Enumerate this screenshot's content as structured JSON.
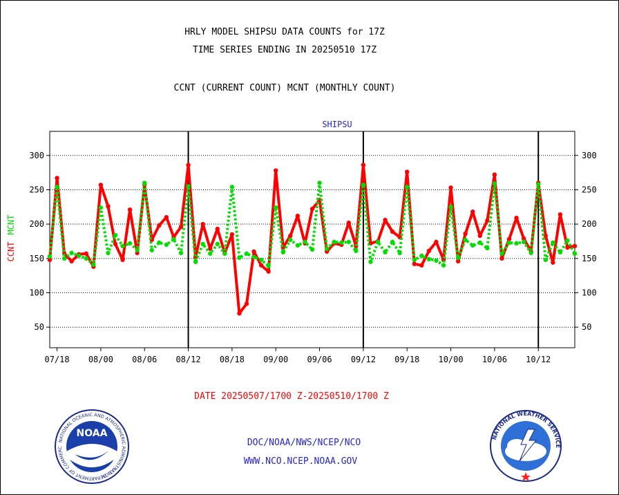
{
  "header": {
    "title_line1": "HRLY MODEL SHIPSU DATA COUNTS for 17Z",
    "title_line2": "TIME SERIES ENDING IN 20250510 17Z",
    "subtitle": "CCNT (CURRENT COUNT) MCNT (MONTHLY COUNT)"
  },
  "footer": {
    "date_range": "DATE 20250507/1700 Z-20250510/1700 Z",
    "link1": "DOC/NOAA/NWS/NCEP/NCO",
    "link2": "WWW.NCO.NCEP.NOAA.GOV",
    "noaa_logo_text": "NOAA",
    "noaa_ring_text": "NATIONAL OCEANIC AND ATMOSPHERIC ADMINISTRATION",
    "noaa_ring_text2": "U.S. DEPARTMENT OF COMMERCE",
    "nws_ring_text": "NATIONAL WEATHER SERVICE"
  },
  "chart_data": {
    "type": "line",
    "title": "SHIPSU",
    "ylabel_left_ccnt": "CCNT",
    "ylabel_left_mcnt": "MCNT",
    "ylim": [
      20,
      335
    ],
    "yticks": [
      50,
      100,
      150,
      200,
      250,
      300
    ],
    "xticks": [
      "07/18",
      "08/00",
      "08/06",
      "08/12",
      "08/18",
      "09/00",
      "09/06",
      "09/12",
      "09/18",
      "10/00",
      "10/06",
      "10/12"
    ],
    "day_separators": [
      "08/12",
      "09/12",
      "10/12"
    ],
    "x_start_hour": -7,
    "x_end_hour": 65,
    "grid": true,
    "colors": {
      "ccnt": "#ff0000",
      "mcnt": "#00dd00"
    },
    "series": [
      {
        "name": "CCNT",
        "values": [
          148,
          267,
          157,
          146,
          156,
          157,
          138,
          257,
          226,
          171,
          148,
          221,
          158,
          257,
          177,
          198,
          210,
          181,
          196,
          286,
          152,
          200,
          164,
          193,
          158,
          185,
          70,
          84,
          160,
          140,
          131,
          278,
          166,
          183,
          212,
          172,
          222,
          235,
          160,
          172,
          170,
          202,
          168,
          286,
          172,
          175,
          206,
          189,
          181,
          276,
          142,
          140,
          161,
          174,
          148,
          253,
          146,
          186,
          218,
          183,
          205,
          272,
          150,
          178,
          209,
          179,
          160,
          260,
          183,
          144,
          214,
          166,
          168
        ],
        "color_key": "ccnt"
      },
      {
        "name": "MCNT",
        "values": [
          153,
          254,
          150,
          158,
          154,
          150,
          141,
          224,
          158,
          184,
          168,
          172,
          162,
          260,
          162,
          173,
          170,
          178,
          158,
          255,
          145,
          171,
          157,
          171,
          157,
          254,
          151,
          157,
          152,
          148,
          139,
          224,
          159,
          177,
          169,
          174,
          163,
          260,
          164,
          174,
          173,
          174,
          161,
          257,
          145,
          174,
          159,
          174,
          158,
          254,
          148,
          154,
          149,
          147,
          140,
          225,
          151,
          177,
          169,
          173,
          165,
          259,
          157,
          173,
          172,
          174,
          158,
          258,
          148,
          173,
          159,
          176,
          157
        ],
        "color_key": "mcnt"
      }
    ]
  }
}
